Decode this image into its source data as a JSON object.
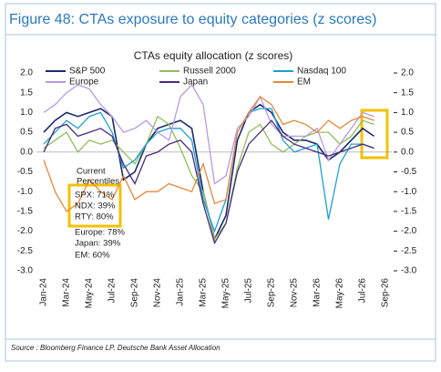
{
  "header": "Figure 48: CTAs exposure to equity categories (z scores)",
  "source": "Source : Bloomberg Finance LP, Deutsche Bank Asset Allocation",
  "chart_data": {
    "type": "line",
    "title": "CTAs equity allocation (z scores)",
    "categories": [
      "Jan-24",
      null,
      "Mar-24",
      null,
      "May-24",
      null,
      "Jul-24",
      null,
      "Sep-24",
      null,
      "Nov-24",
      null,
      "Jan-25",
      null,
      "Mar-25",
      null,
      "May-25",
      null,
      "Jul-25",
      null,
      "Sep-25",
      null,
      "Nov-25",
      null,
      "Mar-26",
      null,
      "May-26",
      null,
      "Jul-26",
      null,
      "Sep-26",
      null
    ],
    "series": [
      {
        "name": "S&P 500",
        "color": "#1a2a6c",
        "values": [
          0.5,
          0.8,
          1.0,
          0.9,
          1.0,
          1.1,
          0.9,
          -0.7,
          -0.5,
          0.2,
          0.6,
          0.7,
          0.8,
          0.6,
          -1.0,
          -2.2,
          -1.6,
          0.3,
          1.0,
          1.2,
          1.0,
          0.5,
          0.3,
          0.3,
          0.2,
          -0.2,
          0.0,
          0.3,
          0.6,
          0.4,
          null,
          null
        ]
      },
      {
        "name": "Russell 2000",
        "color": "#8fbf5a",
        "values": [
          0.1,
          0.3,
          0.5,
          0.0,
          0.3,
          0.2,
          0.3,
          0.0,
          -0.3,
          0.2,
          0.9,
          0.7,
          0.1,
          -0.6,
          -1.0,
          -2.2,
          -1.8,
          -0.4,
          0.5,
          0.7,
          0.2,
          0.0,
          0.2,
          0.4,
          0.5,
          0.5,
          0.2,
          0.4,
          0.8,
          0.7,
          null,
          null
        ]
      },
      {
        "name": "Nasdaq 100",
        "color": "#1e9fd8",
        "values": [
          0.2,
          0.5,
          0.8,
          0.6,
          0.9,
          1.0,
          0.5,
          -0.4,
          -0.2,
          0.2,
          0.5,
          0.6,
          0.6,
          0.3,
          -1.2,
          -2.0,
          -1.2,
          0.5,
          1.0,
          1.1,
          1.1,
          0.3,
          0.0,
          0.1,
          0.2,
          -1.7,
          -0.3,
          0.2,
          0.2,
          0.1,
          null,
          null
        ]
      },
      {
        "name": "Europe",
        "color": "#b89ae0",
        "values": [
          1.0,
          1.2,
          1.5,
          1.7,
          1.6,
          1.2,
          0.9,
          0.5,
          0.6,
          0.8,
          0.5,
          0.3,
          1.4,
          1.7,
          1.2,
          -0.8,
          -0.6,
          0.6,
          0.9,
          1.4,
          0.7,
          0.4,
          0.4,
          0.4,
          0.6,
          -0.2,
          0.2,
          0.6,
          1.0,
          0.9,
          null,
          null
        ]
      },
      {
        "name": "Japan",
        "color": "#4b2a7a",
        "values": [
          0.0,
          0.6,
          0.7,
          0.4,
          0.5,
          0.6,
          0.4,
          -0.3,
          -0.8,
          -0.1,
          0.0,
          0.2,
          0.3,
          0.0,
          -1.3,
          -2.3,
          -1.8,
          -0.5,
          0.2,
          0.5,
          0.8,
          0.4,
          0.2,
          0.1,
          0.0,
          -0.1,
          0.0,
          0.1,
          0.2,
          0.1,
          null,
          null
        ]
      },
      {
        "name": "EM",
        "color": "#e8873a",
        "values": [
          -0.2,
          -1.0,
          -1.5,
          -1.3,
          -0.7,
          -1.0,
          -1.2,
          -0.6,
          -1.2,
          -1.0,
          -1.0,
          -0.8,
          -0.9,
          -1.0,
          -0.3,
          -1.3,
          -1.2,
          0.5,
          1.0,
          1.4,
          1.2,
          0.7,
          0.8,
          0.7,
          0.5,
          0.8,
          0.6,
          0.8,
          0.9,
          0.8,
          null,
          null
        ]
      }
    ],
    "ylim": [
      -3,
      2
    ],
    "yticks": [
      {
        "value": 2,
        "label": "2.0"
      },
      {
        "value": 1.5,
        "label": "1.5"
      },
      {
        "value": 1,
        "label": "1.0"
      },
      {
        "value": 0.5,
        "label": "0.5"
      },
      {
        "value": 0,
        "label": "0.0"
      },
      {
        "value": -0.5,
        "label": "-0.5"
      },
      {
        "value": -1,
        "label": "-1.0"
      },
      {
        "value": -1.5,
        "label": "-1.5"
      },
      {
        "value": -2,
        "label": "-2.0"
      },
      {
        "value": -2.5,
        "label": "-2.5"
      },
      {
        "value": -3,
        "label": "-3.0"
      }
    ],
    "y2lim": [
      -3,
      2
    ],
    "y2ticks": [
      {
        "value": 2,
        "label": "2.0"
      },
      {
        "value": 1.5,
        "label": "1.5"
      },
      {
        "value": 1,
        "label": "1.0"
      },
      {
        "value": 0.5,
        "label": "0.5"
      },
      {
        "value": 0,
        "label": "0.0"
      },
      {
        "value": -0.5,
        "label": "-0.5"
      },
      {
        "value": -1,
        "label": "-1.0"
      },
      {
        "value": -1.5,
        "label": "-1.5"
      },
      {
        "value": -2,
        "label": "-2.0"
      },
      {
        "value": -2.5,
        "label": "-2.5"
      },
      {
        "value": -3,
        "label": "-3.0"
      }
    ],
    "annotations": [
      "Current",
      "Percentiles",
      "SPX: 71%",
      "NDX: 39%",
      "RTY: 80%",
      "Europe: 78%",
      "Japan: 39%",
      "EM: 60%"
    ]
  }
}
